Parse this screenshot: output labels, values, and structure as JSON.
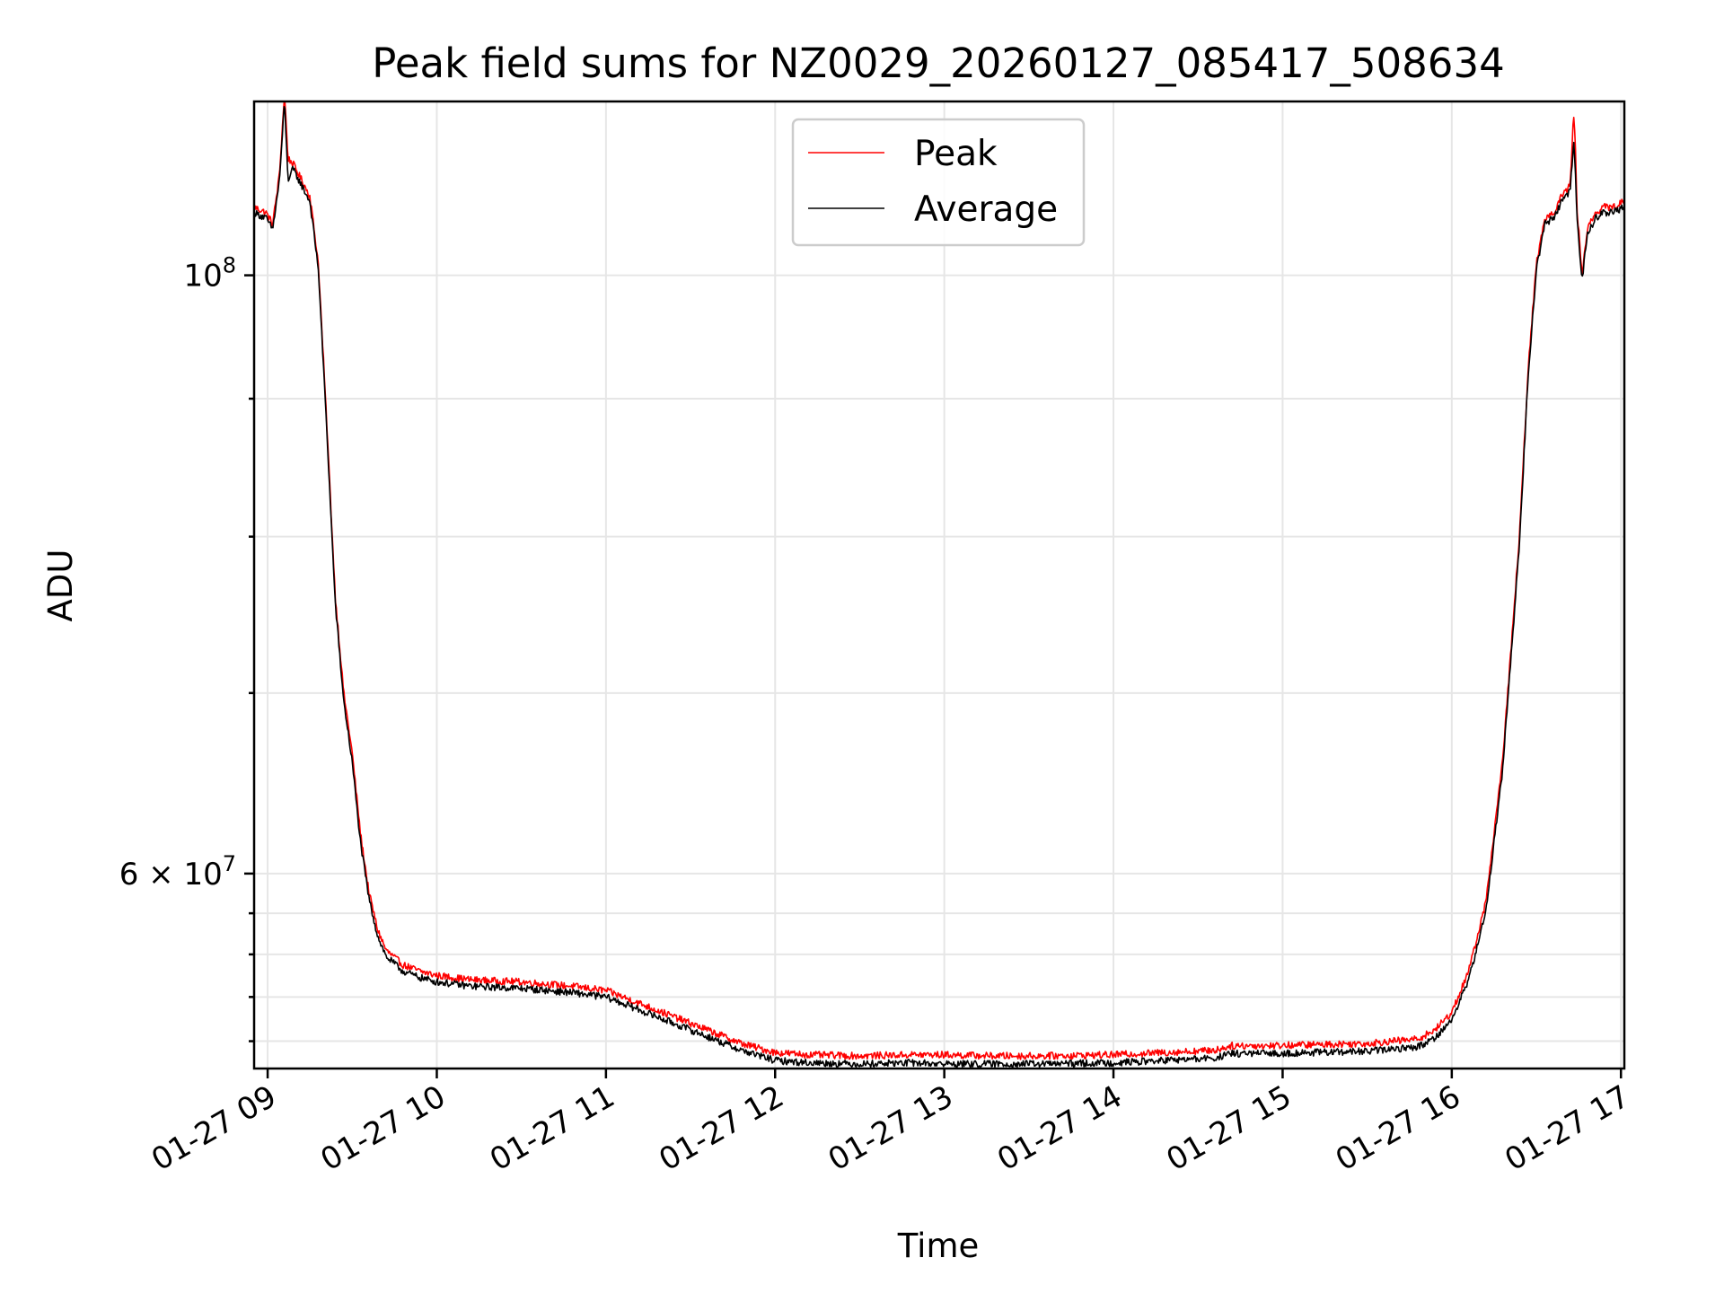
{
  "chart_data": {
    "type": "line",
    "title": "Peak field sums for NZ0029_20260127_085417_508634",
    "xlabel": "Time",
    "ylabel": "ADU",
    "yscale": "log",
    "grid": true,
    "legend_position": "top-center",
    "xlim_hours": [
      8.92,
      17.02
    ],
    "ylim": [
      50800000,
      116000000
    ],
    "x_ticks": [
      {
        "hour": 9,
        "label": "01-27 09"
      },
      {
        "hour": 10,
        "label": "01-27 10"
      },
      {
        "hour": 11,
        "label": "01-27 11"
      },
      {
        "hour": 12,
        "label": "01-27 12"
      },
      {
        "hour": 13,
        "label": "01-27 13"
      },
      {
        "hour": 14,
        "label": "01-27 14"
      },
      {
        "hour": 15,
        "label": "01-27 15"
      },
      {
        "hour": 16,
        "label": "01-27 16"
      },
      {
        "hour": 17,
        "label": "01-27 17"
      }
    ],
    "y_major_ticks": [
      {
        "value": 100000000,
        "base": "10",
        "exp": "8",
        "label": "10^8"
      },
      {
        "value": 60000000,
        "mantissa": "6",
        "base": "10",
        "exp": "7",
        "label": "6 × 10^7"
      }
    ],
    "y_minor_ticks": [
      52000000,
      54000000,
      56000000,
      58000000,
      70000000,
      80000000,
      90000000
    ],
    "series": [
      {
        "name": "Peak",
        "color": "#ff0000",
        "x_hours": [
          8.92,
          8.99,
          9.03,
          9.07,
          9.1,
          9.12,
          9.15,
          9.2,
          9.25,
          9.3,
          9.35,
          9.4,
          9.45,
          9.5,
          9.55,
          9.6,
          9.65,
          9.7,
          9.8,
          9.9,
          10.0,
          10.2,
          10.5,
          10.8,
          11.0,
          11.2,
          11.4,
          11.6,
          11.8,
          12.0,
          12.2,
          12.5,
          12.8,
          13.0,
          13.3,
          13.6,
          14.0,
          14.3,
          14.6,
          14.7,
          14.9,
          15.2,
          15.5,
          15.8,
          15.9,
          16.0,
          16.1,
          16.2,
          16.3,
          16.4,
          16.45,
          16.5,
          16.55,
          16.6,
          16.65,
          16.7,
          16.72,
          16.73,
          16.74,
          16.77,
          16.8,
          16.85,
          16.9,
          16.95,
          17.02
        ],
        "values": [
          106000000,
          105500000,
          104500000,
          109000000,
          117000000,
          110500000,
          110000000,
          108500000,
          107000000,
          101000000,
          88000000,
          76000000,
          70000000,
          66500000,
          62000000,
          59000000,
          57200000,
          56200000,
          55500000,
          55200000,
          55000000,
          54800000,
          54700000,
          54500000,
          54300000,
          53700000,
          53100000,
          52500000,
          51900000,
          51500000,
          51400000,
          51350000,
          51400000,
          51400000,
          51350000,
          51350000,
          51400000,
          51500000,
          51600000,
          51800000,
          51800000,
          51850000,
          51900000,
          52100000,
          52500000,
          53300000,
          55200000,
          58500000,
          66000000,
          80000000,
          92000000,
          101000000,
          105000000,
          105500000,
          107000000,
          108000000,
          115000000,
          112000000,
          106000000,
          100000000,
          104000000,
          105500000,
          106000000,
          106000000,
          106500000
        ]
      },
      {
        "name": "Average",
        "color": "#000000",
        "x_hours": [
          8.92,
          8.99,
          9.03,
          9.07,
          9.1,
          9.12,
          9.15,
          9.2,
          9.25,
          9.3,
          9.35,
          9.4,
          9.45,
          9.5,
          9.55,
          9.6,
          9.65,
          9.7,
          9.8,
          9.9,
          10.0,
          10.2,
          10.5,
          10.8,
          11.0,
          11.2,
          11.4,
          11.6,
          11.8,
          12.0,
          12.2,
          12.5,
          12.8,
          13.0,
          13.3,
          13.6,
          14.0,
          14.3,
          14.6,
          14.7,
          14.9,
          15.2,
          15.5,
          15.8,
          15.9,
          16.0,
          16.1,
          16.2,
          16.3,
          16.4,
          16.45,
          16.5,
          16.55,
          16.6,
          16.65,
          16.7,
          16.72,
          16.73,
          16.74,
          16.77,
          16.8,
          16.85,
          16.9,
          16.95,
          17.02
        ],
        "values": [
          105500000,
          105000000,
          104000000,
          108500000,
          116000000,
          108500000,
          109500000,
          108000000,
          106500000,
          100500000,
          87500000,
          75500000,
          69500000,
          66000000,
          61500000,
          58700000,
          56900000,
          55900000,
          55200000,
          54900000,
          54700000,
          54500000,
          54400000,
          54200000,
          54000000,
          53400000,
          52800000,
          52200000,
          51600000,
          51150000,
          51050000,
          51000000,
          51050000,
          51000000,
          51000000,
          51000000,
          51050000,
          51150000,
          51250000,
          51450000,
          51450000,
          51500000,
          51550000,
          51750000,
          52150000,
          52950000,
          54800000,
          58000000,
          65500000,
          79500000,
          91500000,
          100500000,
          104500000,
          105000000,
          106500000,
          107500000,
          112000000,
          110000000,
          105000000,
          99500000,
          103500000,
          105000000,
          105500000,
          105500000,
          106000000
        ]
      }
    ]
  }
}
